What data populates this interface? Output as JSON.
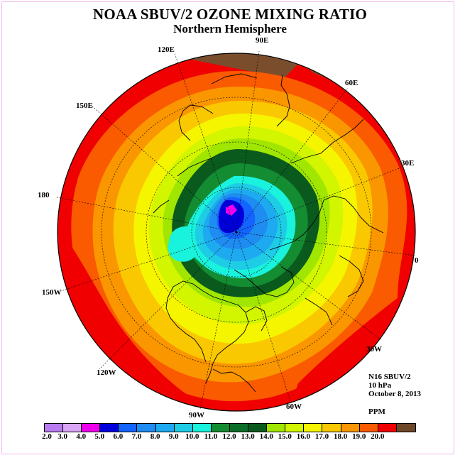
{
  "header": {
    "title": "NOAA SBUV/2 OZONE MIXING RATIO",
    "subtitle": "Northern Hemisphere"
  },
  "longitude_labels": [
    {
      "text": "90E"
    },
    {
      "text": "60E"
    },
    {
      "text": "30E"
    },
    {
      "text": "0"
    },
    {
      "text": "30W"
    },
    {
      "text": "60W"
    },
    {
      "text": "90W"
    },
    {
      "text": "120W"
    },
    {
      "text": "150W"
    },
    {
      "text": "180"
    },
    {
      "text": "150E"
    },
    {
      "text": "120E"
    }
  ],
  "info": {
    "instrument": "N16 SBUV/2",
    "level": "10 hPa",
    "date": "October 8, 2013",
    "units": "PPM"
  },
  "colorbar": {
    "ticks": [
      "2.0",
      "3.0",
      "4.0",
      "5.0",
      "6.0",
      "7.0",
      "8.0",
      "9.0",
      "10.0",
      "11.0",
      "12.0",
      "13.0",
      "14.0",
      "15.0",
      "16.0",
      "17.0",
      "18.0",
      "19.0",
      "20.0"
    ],
    "colors": [
      "#b87cf0",
      "#d9a6f5",
      "#ee00ee",
      "#0000dd",
      "#1464ff",
      "#1e8cf0",
      "#1eaaf0",
      "#1ecce6",
      "#19f2dc",
      "#148c32",
      "#0a6e28",
      "#0a5a1e",
      "#a0e600",
      "#d2f500",
      "#f5f500",
      "#fac800",
      "#fa9600",
      "#fa5a00",
      "#f00000",
      "#6e4628"
    ]
  },
  "map": {
    "contour_colors": {
      "outer_brown": "#7a4e2d",
      "red": "#f00000",
      "orange_red": "#fa5a00",
      "orange": "#fa9600",
      "gold": "#fac800",
      "yellow": "#f5f500",
      "yellow_green": "#d2f500",
      "light_green": "#a0e600",
      "dark_green": "#0a5a1e",
      "mid_green": "#148c32",
      "teal": "#19f2dc",
      "cyan": "#1ecce6",
      "sky": "#1eaaf0",
      "blue": "#1e8cf0",
      "royal": "#1464ff",
      "navy": "#0000dd",
      "magenta": "#ee00ee"
    }
  }
}
